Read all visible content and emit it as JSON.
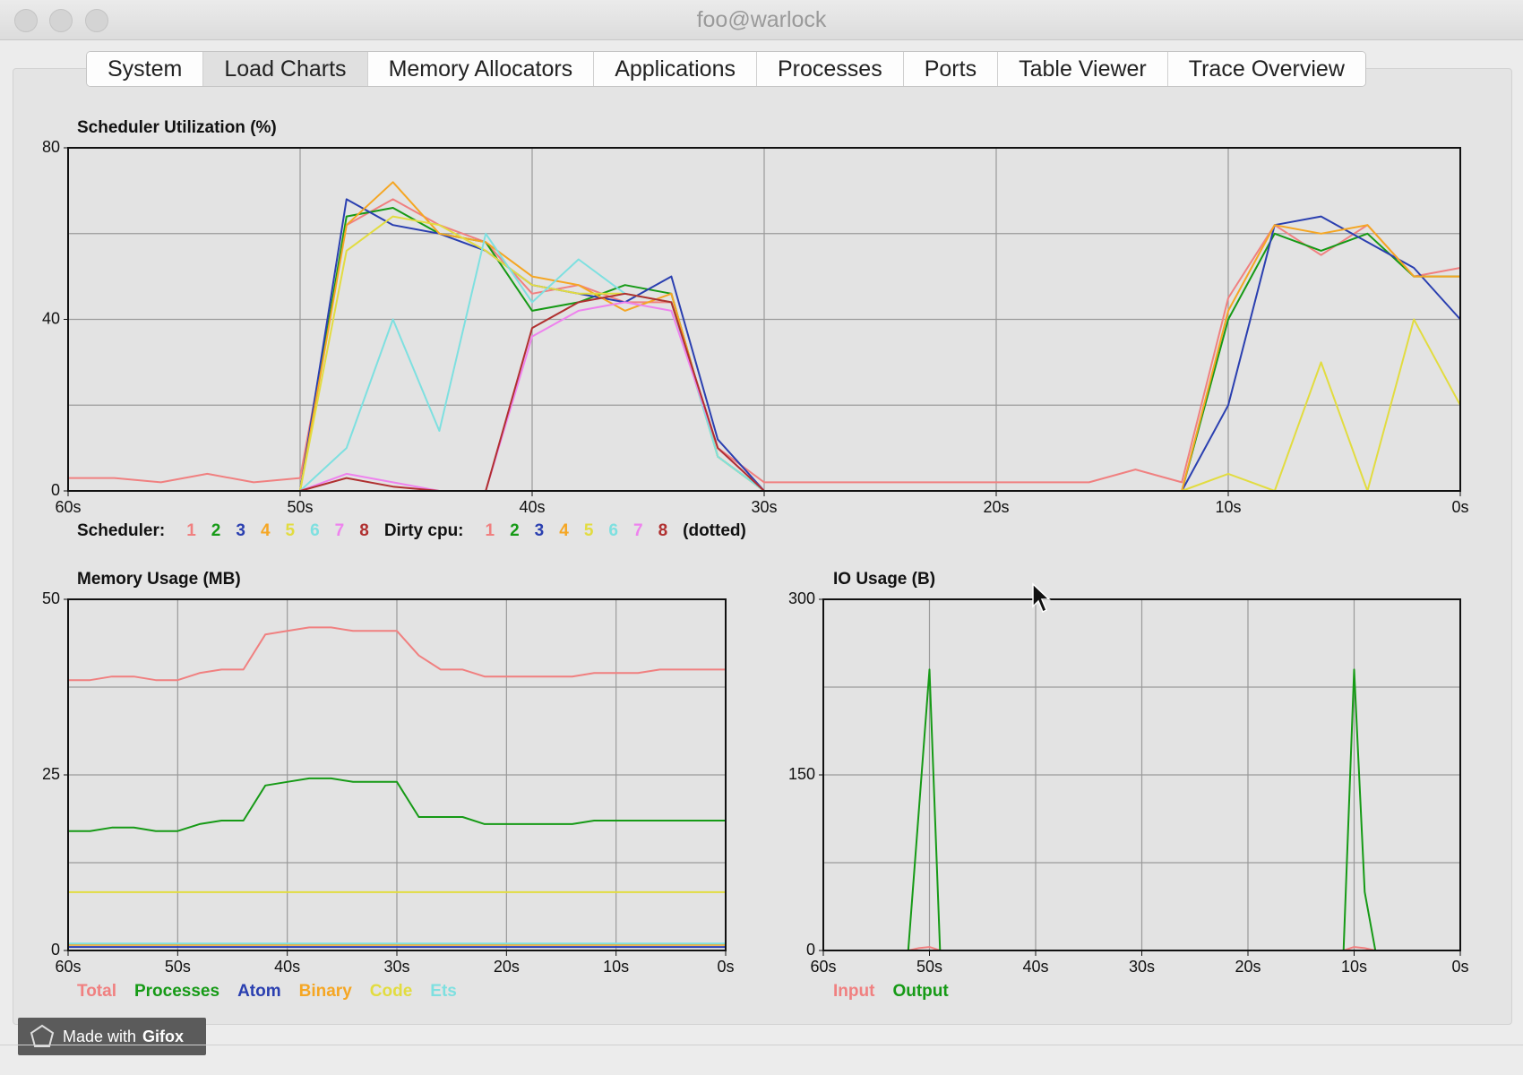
{
  "window": {
    "title": "foo@warlock",
    "tabs": [
      "System",
      "Load Charts",
      "Memory Allocators",
      "Applications",
      "Processes",
      "Ports",
      "Table Viewer",
      "Trace Overview"
    ],
    "selected_tab": 1
  },
  "watermark": {
    "prefix": "Made with",
    "brand": "Gifox"
  },
  "chart_data": [
    {
      "type": "line",
      "title": "Scheduler Utilization (%)",
      "x": [
        60,
        58,
        56,
        54,
        52,
        50,
        48,
        46,
        44,
        42,
        40,
        38,
        36,
        34,
        32,
        30,
        28,
        26,
        24,
        22,
        20,
        18,
        16,
        14,
        12,
        10,
        8,
        6,
        4,
        2,
        0
      ],
      "xlim": [
        60,
        0
      ],
      "xticks": [
        {
          "value": 60,
          "label": "60s"
        },
        {
          "value": 50,
          "label": "50s"
        },
        {
          "value": 40,
          "label": "40s"
        },
        {
          "value": 30,
          "label": "30s"
        },
        {
          "value": 20,
          "label": "20s"
        },
        {
          "value": 10,
          "label": "10s"
        },
        {
          "value": 0,
          "label": "0s"
        }
      ],
      "ylim": [
        0,
        80
      ],
      "yticks": [
        0,
        40,
        80
      ],
      "ygrid": [
        0,
        20,
        40,
        60,
        80
      ],
      "grid": true,
      "legend_labels": [
        "Scheduler:",
        "Dirty cpu:"
      ],
      "legend_note": "(dotted)",
      "series": [
        {
          "name": "1",
          "color": "#f08080",
          "values": [
            3,
            3,
            2,
            4,
            2,
            3,
            62,
            68,
            62,
            58,
            46,
            48,
            44,
            44,
            10,
            2,
            2,
            2,
            2,
            2,
            2,
            2,
            2,
            5,
            2,
            45,
            62,
            55,
            62,
            50,
            52
          ]
        },
        {
          "name": "2",
          "color": "#169a16",
          "values": [
            0,
            0,
            0,
            0,
            0,
            0,
            64,
            66,
            60,
            58,
            42,
            44,
            48,
            46,
            8,
            0,
            0,
            0,
            0,
            0,
            0,
            0,
            0,
            0,
            0,
            40,
            60,
            56,
            60,
            50,
            50
          ]
        },
        {
          "name": "3",
          "color": "#2a3fb0",
          "values": [
            0,
            0,
            0,
            0,
            0,
            0,
            68,
            62,
            60,
            56,
            48,
            46,
            44,
            50,
            12,
            0,
            0,
            0,
            0,
            0,
            0,
            0,
            0,
            0,
            0,
            20,
            62,
            64,
            58,
            52,
            40
          ]
        },
        {
          "name": "4",
          "color": "#f5a623",
          "values": [
            0,
            0,
            0,
            0,
            0,
            0,
            62,
            72,
            60,
            58,
            50,
            48,
            42,
            46,
            8,
            0,
            0,
            0,
            0,
            0,
            0,
            0,
            0,
            0,
            0,
            42,
            62,
            60,
            62,
            50,
            50
          ]
        },
        {
          "name": "5",
          "color": "#e2dc40",
          "values": [
            0,
            0,
            0,
            0,
            0,
            0,
            56,
            64,
            62,
            56,
            48,
            46,
            46,
            44,
            8,
            0,
            0,
            0,
            0,
            0,
            0,
            0,
            0,
            0,
            0,
            4,
            0,
            30,
            0,
            40,
            20
          ]
        },
        {
          "name": "6",
          "color": "#7ee0e0",
          "values": [
            0,
            0,
            0,
            0,
            0,
            0,
            10,
            40,
            14,
            60,
            44,
            54,
            46,
            44,
            8,
            0,
            0,
            0,
            0,
            0,
            0,
            0,
            0,
            0,
            0,
            0,
            0,
            0,
            0,
            0,
            0
          ]
        },
        {
          "name": "7",
          "color": "#ee82ee",
          "values": [
            0,
            0,
            0,
            0,
            0,
            0,
            4,
            2,
            0,
            0,
            36,
            42,
            44,
            42,
            10,
            0,
            0,
            0,
            0,
            0,
            0,
            0,
            0,
            0,
            0,
            0,
            0,
            0,
            0,
            0,
            0
          ]
        },
        {
          "name": "8",
          "color": "#b03030",
          "values": [
            0,
            0,
            0,
            0,
            0,
            0,
            3,
            1,
            0,
            0,
            38,
            44,
            46,
            44,
            10,
            0,
            0,
            0,
            0,
            0,
            0,
            0,
            0,
            0,
            0,
            0,
            0,
            0,
            0,
            0,
            0
          ]
        },
        {
          "name": "1",
          "color": "#f08080",
          "style": "dotted",
          "values": [
            0,
            0,
            0,
            0,
            0,
            0,
            0,
            0,
            0,
            0,
            0,
            0,
            0,
            0,
            0,
            0,
            0,
            0,
            0,
            0,
            0,
            0,
            0,
            0,
            0,
            0,
            0,
            0,
            0,
            0,
            0
          ]
        },
        {
          "name": "2",
          "color": "#169a16",
          "style": "dotted",
          "values": [
            0,
            0,
            0,
            0,
            0,
            0,
            0,
            0,
            0,
            0,
            0,
            0,
            0,
            0,
            0,
            0,
            0,
            0,
            0,
            0,
            0,
            0,
            0,
            0,
            0,
            0,
            0,
            0,
            0,
            0,
            0
          ]
        },
        {
          "name": "3",
          "color": "#2a3fb0",
          "style": "dotted",
          "values": [
            0,
            0,
            0,
            0,
            0,
            0,
            0,
            0,
            0,
            0,
            0,
            0,
            0,
            0,
            0,
            0,
            0,
            0,
            0,
            0,
            0,
            0,
            0,
            0,
            0,
            0,
            0,
            0,
            0,
            0,
            0
          ]
        },
        {
          "name": "4",
          "color": "#f5a623",
          "style": "dotted",
          "values": [
            0,
            0,
            0,
            0,
            0,
            0,
            0,
            0,
            0,
            0,
            0,
            0,
            0,
            0,
            0,
            0,
            0,
            0,
            0,
            0,
            0,
            0,
            0,
            0,
            0,
            0,
            0,
            0,
            0,
            0,
            0
          ]
        },
        {
          "name": "5",
          "color": "#e2dc40",
          "style": "dotted",
          "values": [
            0,
            0,
            0,
            0,
            0,
            0,
            0,
            0,
            0,
            0,
            0,
            0,
            0,
            0,
            0,
            0,
            0,
            0,
            0,
            0,
            0,
            0,
            0,
            0,
            0,
            0,
            0,
            0,
            0,
            0,
            0
          ]
        },
        {
          "name": "6",
          "color": "#7ee0e0",
          "style": "dotted",
          "values": [
            0,
            0,
            0,
            0,
            0,
            0,
            0,
            0,
            0,
            0,
            0,
            0,
            0,
            0,
            0,
            0,
            0,
            0,
            0,
            0,
            0,
            0,
            0,
            0,
            0,
            0,
            0,
            0,
            0,
            0,
            0
          ]
        },
        {
          "name": "7",
          "color": "#ee82ee",
          "style": "dotted",
          "values": [
            0,
            0,
            0,
            0,
            0,
            0,
            0,
            0,
            0,
            0,
            0,
            0,
            0,
            0,
            0,
            0,
            0,
            0,
            0,
            0,
            0,
            0,
            0,
            0,
            0,
            0,
            0,
            0,
            0,
            0,
            0
          ]
        },
        {
          "name": "8",
          "color": "#b03030",
          "style": "dotted",
          "values": [
            0,
            0,
            0,
            0,
            0,
            0,
            0,
            0,
            0,
            0,
            0,
            0,
            0,
            0,
            0,
            0,
            0,
            0,
            0,
            0,
            0,
            0,
            0,
            0,
            0,
            0,
            0,
            0,
            0,
            0,
            0
          ]
        }
      ]
    },
    {
      "type": "line",
      "title": "Memory Usage (MB)",
      "x": [
        60,
        58,
        56,
        54,
        52,
        50,
        48,
        46,
        44,
        42,
        40,
        38,
        36,
        34,
        32,
        30,
        28,
        26,
        24,
        22,
        20,
        18,
        16,
        14,
        12,
        10,
        8,
        6,
        4,
        2,
        0
      ],
      "xlim": [
        60,
        0
      ],
      "xticks": [
        {
          "value": 60,
          "label": "60s"
        },
        {
          "value": 50,
          "label": "50s"
        },
        {
          "value": 40,
          "label": "40s"
        },
        {
          "value": 30,
          "label": "30s"
        },
        {
          "value": 20,
          "label": "20s"
        },
        {
          "value": 10,
          "label": "10s"
        },
        {
          "value": 0,
          "label": "0s"
        }
      ],
      "ylim": [
        0,
        50
      ],
      "yticks": [
        0,
        25,
        50
      ],
      "ygrid": [
        0,
        12.5,
        25,
        37.5,
        50
      ],
      "grid": true,
      "series": [
        {
          "name": "Total",
          "color": "#f08080",
          "values": [
            38.5,
            38.5,
            39,
            39,
            38.5,
            38.5,
            39.5,
            40,
            40,
            45,
            45.5,
            46,
            46,
            45.5,
            45.5,
            45.5,
            42,
            40,
            40,
            39,
            39,
            39,
            39,
            39,
            39.5,
            39.5,
            39.5,
            40,
            40,
            40,
            40
          ]
        },
        {
          "name": "Processes",
          "color": "#169a16",
          "values": [
            17,
            17,
            17.5,
            17.5,
            17,
            17,
            18,
            18.5,
            18.5,
            23.5,
            24,
            24.5,
            24.5,
            24,
            24,
            24,
            19,
            19,
            19,
            18,
            18,
            18,
            18,
            18,
            18.5,
            18.5,
            18.5,
            18.5,
            18.5,
            18.5,
            18.5
          ]
        },
        {
          "name": "Atom",
          "color": "#2a3fb0",
          "values": [
            0.5,
            0.5,
            0.5,
            0.5,
            0.5,
            0.5,
            0.5,
            0.5,
            0.5,
            0.5,
            0.5,
            0.5,
            0.5,
            0.5,
            0.5,
            0.5,
            0.5,
            0.5,
            0.5,
            0.5,
            0.5,
            0.5,
            0.5,
            0.5,
            0.5,
            0.5,
            0.5,
            0.5,
            0.5,
            0.5,
            0.5
          ]
        },
        {
          "name": "Binary",
          "color": "#f5a623",
          "values": [
            0.8,
            0.8,
            0.8,
            0.8,
            0.8,
            0.8,
            0.8,
            0.8,
            0.8,
            0.8,
            0.8,
            0.8,
            0.8,
            0.8,
            0.8,
            0.8,
            0.8,
            0.8,
            0.8,
            0.8,
            0.8,
            0.8,
            0.8,
            0.8,
            0.8,
            0.8,
            0.8,
            0.8,
            0.8,
            0.8,
            0.8
          ]
        },
        {
          "name": "Code",
          "color": "#e2dc40",
          "values": [
            8.3,
            8.3,
            8.3,
            8.3,
            8.3,
            8.3,
            8.3,
            8.3,
            8.3,
            8.3,
            8.3,
            8.3,
            8.3,
            8.3,
            8.3,
            8.3,
            8.3,
            8.3,
            8.3,
            8.3,
            8.3,
            8.3,
            8.3,
            8.3,
            8.3,
            8.3,
            8.3,
            8.3,
            8.3,
            8.3,
            8.3
          ]
        },
        {
          "name": "Ets",
          "color": "#7ee0e0",
          "values": [
            1,
            1,
            1,
            1,
            1,
            1,
            1,
            1,
            1,
            1,
            1,
            1,
            1,
            1,
            1,
            1,
            1,
            1,
            1,
            1,
            1,
            1,
            1,
            1,
            1,
            1,
            1,
            1,
            1,
            1,
            1
          ]
        }
      ]
    },
    {
      "type": "line",
      "title": "IO Usage (B)",
      "x": [
        60,
        59,
        58,
        57,
        56,
        55,
        54,
        53,
        52,
        51,
        50,
        49,
        48,
        47,
        46,
        45,
        44,
        43,
        42,
        41,
        40,
        39,
        38,
        37,
        36,
        35,
        34,
        33,
        32,
        31,
        30,
        29,
        28,
        27,
        26,
        25,
        24,
        23,
        22,
        21,
        20,
        19,
        18,
        17,
        16,
        15,
        14,
        13,
        12,
        11,
        10,
        9,
        8,
        7,
        6,
        5,
        4,
        3,
        2,
        1,
        0
      ],
      "xlim": [
        60,
        0
      ],
      "xticks": [
        {
          "value": 60,
          "label": "60s"
        },
        {
          "value": 50,
          "label": "50s"
        },
        {
          "value": 40,
          "label": "40s"
        },
        {
          "value": 30,
          "label": "30s"
        },
        {
          "value": 20,
          "label": "20s"
        },
        {
          "value": 10,
          "label": "10s"
        },
        {
          "value": 0,
          "label": "0s"
        }
      ],
      "ylim": [
        0,
        300
      ],
      "yticks": [
        0,
        150,
        300
      ],
      "ygrid": [
        0,
        75,
        150,
        225,
        300
      ],
      "grid": true,
      "series": [
        {
          "name": "Input",
          "color": "#f08080",
          "values": [
            0,
            0,
            0,
            0,
            0,
            0,
            0,
            0,
            0,
            2,
            3,
            0,
            0,
            0,
            0,
            0,
            0,
            0,
            0,
            0,
            0,
            0,
            0,
            0,
            0,
            0,
            0,
            0,
            0,
            0,
            0,
            0,
            0,
            0,
            0,
            0,
            0,
            0,
            0,
            0,
            0,
            0,
            0,
            0,
            0,
            0,
            0,
            0,
            0,
            0,
            3,
            2,
            0,
            0,
            0,
            0,
            0,
            0,
            0,
            0,
            0
          ]
        },
        {
          "name": "Output",
          "color": "#169a16",
          "values": [
            0,
            0,
            0,
            0,
            0,
            0,
            0,
            0,
            0,
            120,
            240,
            0,
            0,
            0,
            0,
            0,
            0,
            0,
            0,
            0,
            0,
            0,
            0,
            0,
            0,
            0,
            0,
            0,
            0,
            0,
            0,
            0,
            0,
            0,
            0,
            0,
            0,
            0,
            0,
            0,
            0,
            0,
            0,
            0,
            0,
            0,
            0,
            0,
            0,
            0,
            240,
            50,
            0,
            0,
            0,
            0,
            0,
            0,
            0,
            0,
            0
          ]
        }
      ]
    }
  ]
}
